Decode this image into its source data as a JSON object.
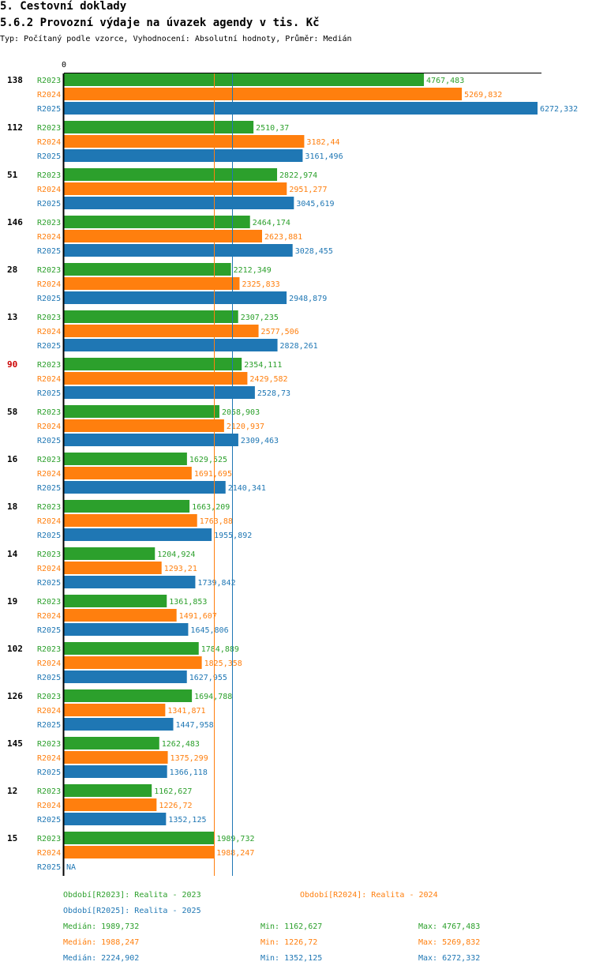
{
  "header": {
    "title": "5. Cestovní doklady",
    "subtitle": "5.6.2 Provozní výdaje na úvazek agendy v tis. Kč",
    "info": "Typ: Počítaný podle vzorce, Vyhodnocení: Absolutní hodnoty, Průměr: Medián"
  },
  "colors": {
    "R2023": "#2ca02c",
    "R2024": "#ff7f0e",
    "R2025": "#1f77b4",
    "highlight": "#cc0000"
  },
  "chart_data": {
    "type": "bar",
    "orientation": "horizontal",
    "x_tick_label": "0",
    "xlim": [
      0,
      6272.332
    ],
    "series_names": [
      "R2023",
      "R2024",
      "R2025"
    ],
    "groups": [
      {
        "label": "138",
        "highlight": false,
        "values": [
          4767.483,
          5269.832,
          6272.332
        ],
        "labels": [
          "4767,483",
          "5269,832",
          "6272,332"
        ]
      },
      {
        "label": "112",
        "highlight": false,
        "values": [
          2510.37,
          3182.44,
          3161.496
        ],
        "labels": [
          "2510,37",
          "3182,44",
          "3161,496"
        ]
      },
      {
        "label": "51",
        "highlight": false,
        "values": [
          2822.974,
          2951.277,
          3045.619
        ],
        "labels": [
          "2822,974",
          "2951,277",
          "3045,619"
        ]
      },
      {
        "label": "146",
        "highlight": false,
        "values": [
          2464.174,
          2623.881,
          3028.455
        ],
        "labels": [
          "2464,174",
          "2623,881",
          "3028,455"
        ]
      },
      {
        "label": "28",
        "highlight": false,
        "values": [
          2212.349,
          2325.833,
          2948.879
        ],
        "labels": [
          "2212,349",
          "2325,833",
          "2948,879"
        ]
      },
      {
        "label": "13",
        "highlight": false,
        "values": [
          2307.235,
          2577.506,
          2828.261
        ],
        "labels": [
          "2307,235",
          "2577,506",
          "2828,261"
        ]
      },
      {
        "label": "90",
        "highlight": true,
        "values": [
          2354.111,
          2429.582,
          2528.73
        ],
        "labels": [
          "2354,111",
          "2429,582",
          "2528,73"
        ]
      },
      {
        "label": "58",
        "highlight": false,
        "values": [
          2058.903,
          2120.937,
          2309.463
        ],
        "labels": [
          "2058,903",
          "2120,937",
          "2309,463"
        ]
      },
      {
        "label": "16",
        "highlight": false,
        "values": [
          1629.525,
          1691.695,
          2140.341
        ],
        "labels": [
          "1629,525",
          "1691,695",
          "2140,341"
        ]
      },
      {
        "label": "18",
        "highlight": false,
        "values": [
          1663.209,
          1763.88,
          1955.892
        ],
        "labels": [
          "1663,209",
          "1763,88",
          "1955,892"
        ]
      },
      {
        "label": "14",
        "highlight": false,
        "values": [
          1204.924,
          1293.21,
          1739.842
        ],
        "labels": [
          "1204,924",
          "1293,21",
          "1739,842"
        ]
      },
      {
        "label": "19",
        "highlight": false,
        "values": [
          1361.853,
          1491.607,
          1645.806
        ],
        "labels": [
          "1361,853",
          "1491,607",
          "1645,806"
        ]
      },
      {
        "label": "102",
        "highlight": false,
        "values": [
          1784.889,
          1825.358,
          1627.955
        ],
        "labels": [
          "1784,889",
          "1825,358",
          "1627,955"
        ]
      },
      {
        "label": "126",
        "highlight": false,
        "values": [
          1694.788,
          1341.871,
          1447.958
        ],
        "labels": [
          "1694,788",
          "1341,871",
          "1447,958"
        ]
      },
      {
        "label": "145",
        "highlight": false,
        "values": [
          1262.483,
          1375.299,
          1366.118
        ],
        "labels": [
          "1262,483",
          "1375,299",
          "1366,118"
        ]
      },
      {
        "label": "12",
        "highlight": false,
        "values": [
          1162.627,
          1226.72,
          1352.125
        ],
        "labels": [
          "1162,627",
          "1226,72",
          "1352,125"
        ]
      },
      {
        "label": "15",
        "highlight": false,
        "values": [
          1989.732,
          1988.247,
          null
        ],
        "labels": [
          "1989,732",
          "1988,247",
          "NA"
        ]
      }
    ],
    "reference_lines": [
      {
        "series": "R2024",
        "value": 1988.247
      },
      {
        "series": "R2025",
        "value": 2224.902
      }
    ]
  },
  "legend": {
    "p2023": "Období[R2023]: Realita - 2023",
    "p2024": "Období[R2024]: Realita - 2024",
    "p2025": "Období[R2025]: Realita - 2025",
    "rows": [
      {
        "median": "Medián: 1989,732",
        "min": "Min: 1162,627",
        "max": "Max: 4767,483"
      },
      {
        "median": "Medián: 1988,247",
        "min": "Min: 1226,72",
        "max": "Max: 5269,832"
      },
      {
        "median": "Medián: 2224,902",
        "min": "Min: 1352,125",
        "max": "Max: 6272,332"
      }
    ]
  }
}
